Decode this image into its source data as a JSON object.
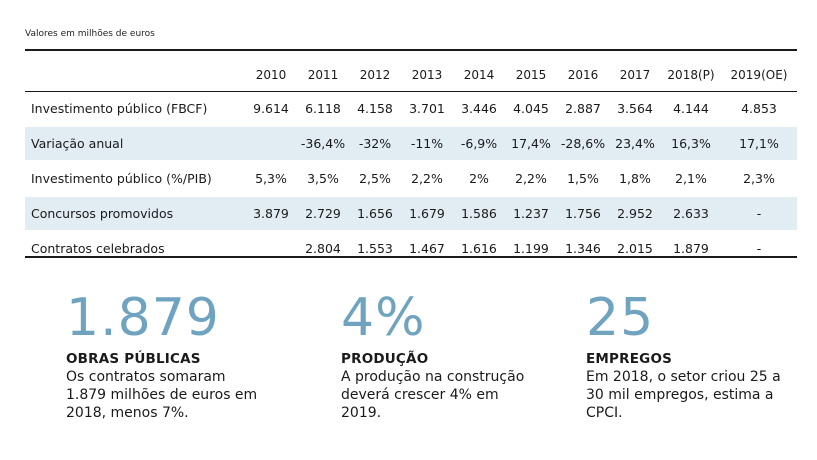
{
  "units_note": "Valores em milhões de euros",
  "chart_data": {
    "type": "table",
    "title": "Valores em milhões de euros",
    "columns": [
      "2010",
      "2011",
      "2012",
      "2013",
      "2014",
      "2015",
      "2016",
      "2017",
      "2018(P)",
      "2019(OE)"
    ],
    "rows": [
      {
        "label": "Investimento público (FBCF)",
        "shaded": false,
        "values": [
          "9.614",
          "6.118",
          "4.158",
          "3.701",
          "3.446",
          "4.045",
          "2.887",
          "3.564",
          "4.144",
          "4.853"
        ]
      },
      {
        "label": "Variação anual",
        "shaded": true,
        "values": [
          "",
          "-36,4%",
          "-32%",
          "-11%",
          "-6,9%",
          "17,4%",
          "-28,6%",
          "23,4%",
          "16,3%",
          "17,1%"
        ]
      },
      {
        "label": "Investimento público (%/PIB)",
        "shaded": false,
        "values": [
          "5,3%",
          "3,5%",
          "2,5%",
          "2,2%",
          "2%",
          "2,2%",
          "1,5%",
          "1,8%",
          "2,1%",
          "2,3%"
        ]
      },
      {
        "label": "Concursos promovidos",
        "shaded": true,
        "values": [
          "3.879",
          "2.729",
          "1.656",
          "1.679",
          "1.586",
          "1.237",
          "1.756",
          "2.952",
          "2.633",
          "-"
        ]
      },
      {
        "label": "Contratos celebrados",
        "shaded": false,
        "values": [
          "",
          "2.804",
          "1.553",
          "1.467",
          "1.616",
          "1.199",
          "1.346",
          "2.015",
          "1.879",
          "-"
        ]
      }
    ]
  },
  "stats": [
    {
      "value": "1.879",
      "heading": "OBRAS PÚBLICAS",
      "text": "Os contratos somaram 1.879 milhões de euros em 2018, menos 7%."
    },
    {
      "value": "4%",
      "heading": "PRODUÇÃO",
      "text": "A produção na construção deverá crescer 4% em 2019."
    },
    {
      "value": "25",
      "heading": "EMPREGOS",
      "text": "Em 2018, o setor criou 25 a 30 mil empregos, estima a CPCI."
    }
  ],
  "colors": {
    "accent": "#6fa3bf",
    "row_shade": "#e2edf3",
    "rule": "#1a1a1a"
  }
}
